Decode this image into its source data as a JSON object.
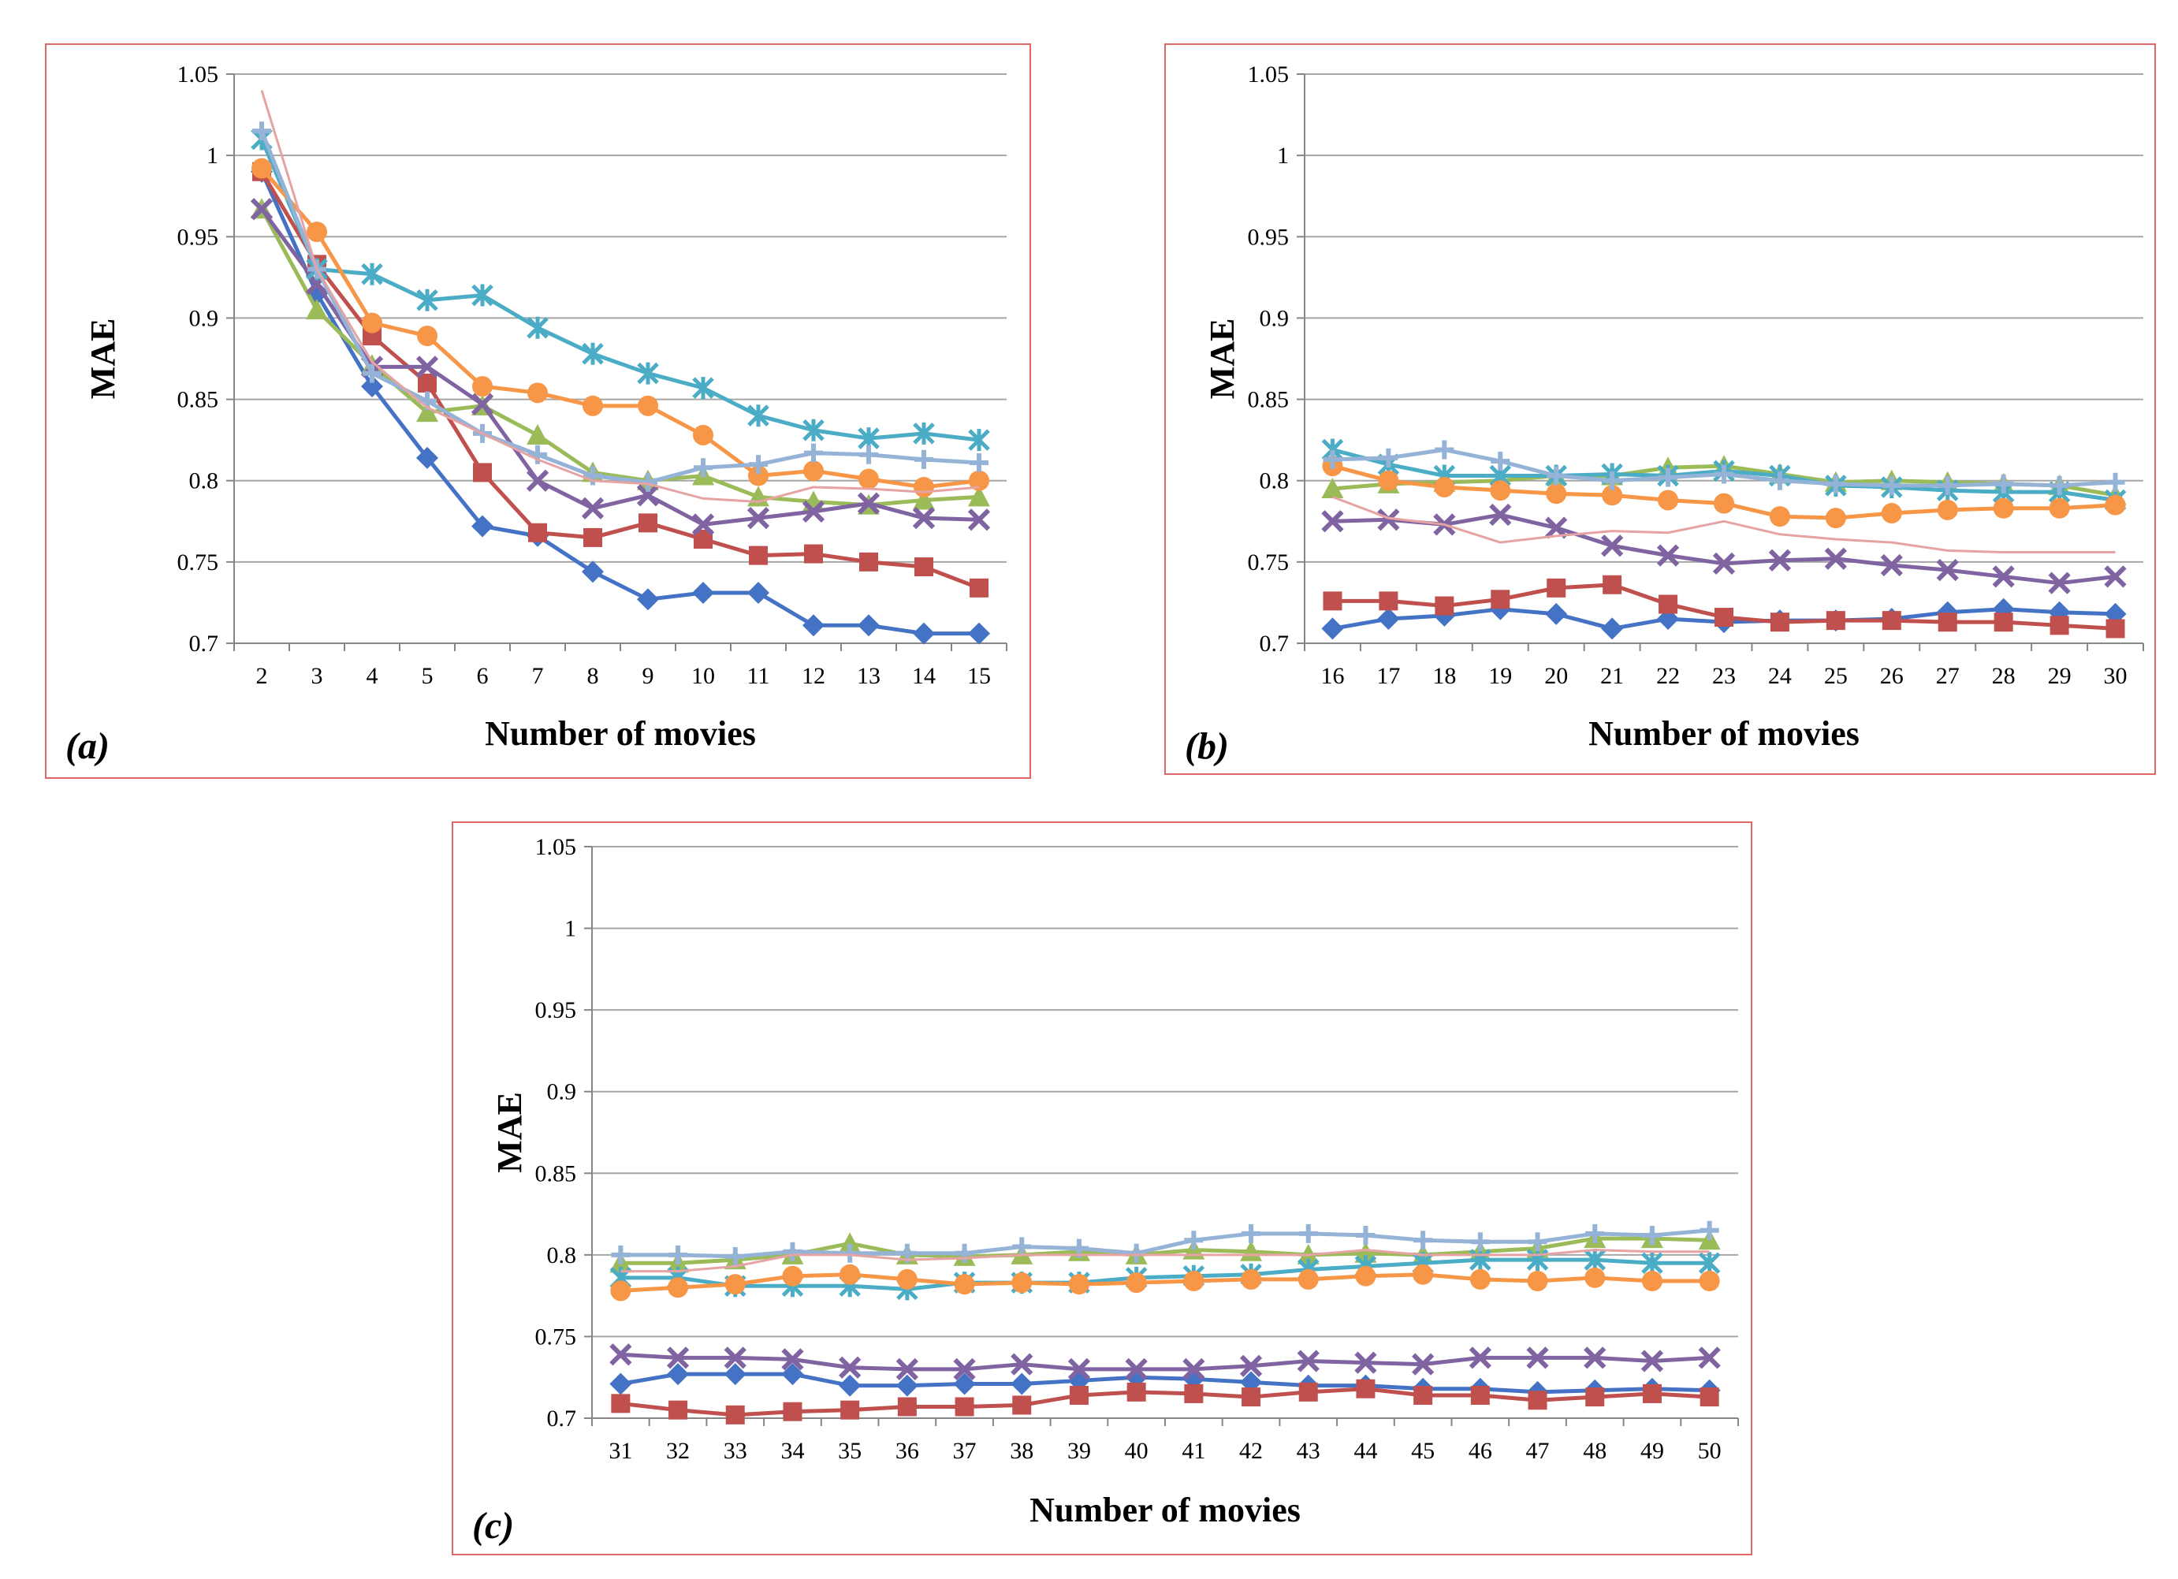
{
  "series_styles": [
    {
      "key": "s1",
      "color": "#4472c4",
      "marker": "diamond"
    },
    {
      "key": "s2",
      "color": "#c0504d",
      "marker": "square"
    },
    {
      "key": "s3",
      "color": "#9bbb59",
      "marker": "triangle"
    },
    {
      "key": "s4",
      "color": "#8064a2",
      "marker": "x"
    },
    {
      "key": "s5",
      "color": "#4bacc6",
      "marker": "star"
    },
    {
      "key": "s6",
      "color": "#f79646",
      "marker": "circle"
    },
    {
      "key": "s7",
      "color": "#95b3d7",
      "marker": "plus"
    },
    {
      "key": "s8",
      "color": "#e6a3a3",
      "marker": "none"
    }
  ],
  "chart_data": [
    {
      "type": "line",
      "panel_label": "(a)",
      "xlabel": "Number of movies",
      "ylabel": "MAE",
      "ylim": [
        0.7,
        1.05
      ],
      "yticks": [
        "0.7",
        "0.75",
        "0.8",
        "0.85",
        "0.9",
        "0.95",
        "1",
        "1.05"
      ],
      "categories": [
        "2",
        "3",
        "4",
        "5",
        "6",
        "7",
        "8",
        "9",
        "10",
        "11",
        "12",
        "13",
        "14",
        "15"
      ],
      "series": [
        {
          "key": "s1",
          "values": [
            0.99,
            0.915,
            0.858,
            0.814,
            0.772,
            0.766,
            0.744,
            0.727,
            0.731,
            0.731,
            0.711,
            0.711,
            0.706,
            0.706
          ]
        },
        {
          "key": "s2",
          "values": [
            0.99,
            0.933,
            0.889,
            0.86,
            0.805,
            0.768,
            0.765,
            0.774,
            0.764,
            0.754,
            0.755,
            0.75,
            0.747,
            0.734
          ]
        },
        {
          "key": "s3",
          "values": [
            0.967,
            0.905,
            0.871,
            0.842,
            0.846,
            0.828,
            0.805,
            0.8,
            0.803,
            0.79,
            0.787,
            0.785,
            0.788,
            0.79
          ]
        },
        {
          "key": "s4",
          "values": [
            0.967,
            0.921,
            0.87,
            0.87,
            0.847,
            0.8,
            0.783,
            0.791,
            0.773,
            0.777,
            0.781,
            0.786,
            0.777,
            0.776
          ]
        },
        {
          "key": "s5",
          "values": [
            1.01,
            0.93,
            0.927,
            0.911,
            0.914,
            0.894,
            0.878,
            0.866,
            0.857,
            0.84,
            0.831,
            0.826,
            0.829,
            0.825
          ]
        },
        {
          "key": "s6",
          "values": [
            0.992,
            0.953,
            0.897,
            0.889,
            0.858,
            0.854,
            0.846,
            0.846,
            0.828,
            0.803,
            0.806,
            0.801,
            0.796,
            0.8
          ]
        },
        {
          "key": "s7",
          "values": [
            1.015,
            0.93,
            0.866,
            0.849,
            0.829,
            0.816,
            0.803,
            0.799,
            0.808,
            0.81,
            0.817,
            0.816,
            0.813,
            0.811
          ]
        },
        {
          "key": "s8",
          "values": [
            1.04,
            0.93,
            0.873,
            0.845,
            0.829,
            0.813,
            0.8,
            0.798,
            0.789,
            0.787,
            0.796,
            0.795,
            0.793,
            0.796
          ]
        }
      ]
    },
    {
      "type": "line",
      "panel_label": "(b)",
      "xlabel": "Number of movies",
      "ylabel": "MAE",
      "ylim": [
        0.7,
        1.05
      ],
      "yticks": [
        "0.7",
        "0.75",
        "0.8",
        "0.85",
        "0.9",
        "0.95",
        "1",
        "1.05"
      ],
      "categories": [
        "16",
        "17",
        "18",
        "19",
        "20",
        "21",
        "22",
        "23",
        "24",
        "25",
        "26",
        "27",
        "28",
        "29",
        "30"
      ],
      "series": [
        {
          "key": "s1",
          "values": [
            0.709,
            0.715,
            0.717,
            0.721,
            0.718,
            0.709,
            0.715,
            0.713,
            0.714,
            0.714,
            0.715,
            0.719,
            0.721,
            0.719,
            0.718
          ]
        },
        {
          "key": "s2",
          "values": [
            0.726,
            0.726,
            0.723,
            0.727,
            0.734,
            0.736,
            0.724,
            0.716,
            0.713,
            0.714,
            0.714,
            0.713,
            0.713,
            0.711,
            0.709
          ]
        },
        {
          "key": "s3",
          "values": [
            0.795,
            0.798,
            0.799,
            0.8,
            0.803,
            0.803,
            0.808,
            0.809,
            0.804,
            0.799,
            0.8,
            0.799,
            0.798,
            0.797,
            0.791
          ]
        },
        {
          "key": "s4",
          "values": [
            0.775,
            0.776,
            0.773,
            0.779,
            0.771,
            0.76,
            0.754,
            0.749,
            0.751,
            0.752,
            0.748,
            0.745,
            0.741,
            0.737,
            0.741
          ]
        },
        {
          "key": "s5",
          "values": [
            0.819,
            0.81,
            0.803,
            0.803,
            0.803,
            0.804,
            0.803,
            0.806,
            0.803,
            0.797,
            0.796,
            0.794,
            0.793,
            0.793,
            0.788
          ]
        },
        {
          "key": "s6",
          "values": [
            0.809,
            0.8,
            0.796,
            0.794,
            0.792,
            0.791,
            0.788,
            0.786,
            0.778,
            0.777,
            0.78,
            0.782,
            0.783,
            0.783,
            0.785
          ]
        },
        {
          "key": "s7",
          "values": [
            0.813,
            0.814,
            0.819,
            0.812,
            0.803,
            0.8,
            0.802,
            0.804,
            0.8,
            0.798,
            0.797,
            0.797,
            0.798,
            0.797,
            0.799
          ]
        },
        {
          "key": "s8",
          "values": [
            0.79,
            0.777,
            0.773,
            0.762,
            0.766,
            0.769,
            0.768,
            0.775,
            0.767,
            0.764,
            0.762,
            0.757,
            0.756,
            0.756,
            0.756
          ]
        }
      ]
    },
    {
      "type": "line",
      "panel_label": "(c)",
      "xlabel": "Number of movies",
      "ylabel": "MAE",
      "ylim": [
        0.7,
        1.05
      ],
      "yticks": [
        "0.7",
        "0.75",
        "0.8",
        "0.85",
        "0.9",
        "0.95",
        "1",
        "1.05"
      ],
      "categories": [
        "31",
        "32",
        "33",
        "34",
        "35",
        "36",
        "37",
        "38",
        "39",
        "40",
        "41",
        "42",
        "43",
        "44",
        "45",
        "46",
        "47",
        "48",
        "49",
        "50"
      ],
      "series": [
        {
          "key": "s1",
          "values": [
            0.721,
            0.727,
            0.727,
            0.727,
            0.72,
            0.72,
            0.721,
            0.721,
            0.723,
            0.725,
            0.724,
            0.722,
            0.72,
            0.72,
            0.718,
            0.718,
            0.716,
            0.717,
            0.718,
            0.717
          ]
        },
        {
          "key": "s2",
          "values": [
            0.709,
            0.705,
            0.702,
            0.704,
            0.705,
            0.707,
            0.707,
            0.708,
            0.714,
            0.716,
            0.715,
            0.713,
            0.716,
            0.718,
            0.714,
            0.714,
            0.711,
            0.713,
            0.715,
            0.713
          ]
        },
        {
          "key": "s3",
          "values": [
            0.795,
            0.795,
            0.797,
            0.8,
            0.807,
            0.8,
            0.799,
            0.8,
            0.802,
            0.8,
            0.803,
            0.802,
            0.8,
            0.801,
            0.8,
            0.802,
            0.804,
            0.81,
            0.81,
            0.809
          ]
        },
        {
          "key": "s4",
          "values": [
            0.739,
            0.737,
            0.737,
            0.736,
            0.731,
            0.73,
            0.73,
            0.733,
            0.73,
            0.73,
            0.73,
            0.732,
            0.735,
            0.734,
            0.733,
            0.737,
            0.737,
            0.737,
            0.735,
            0.737
          ]
        },
        {
          "key": "s5",
          "values": [
            0.786,
            0.786,
            0.781,
            0.781,
            0.781,
            0.779,
            0.783,
            0.783,
            0.783,
            0.786,
            0.787,
            0.788,
            0.791,
            0.793,
            0.795,
            0.797,
            0.797,
            0.797,
            0.795,
            0.795
          ]
        },
        {
          "key": "s6",
          "values": [
            0.778,
            0.78,
            0.782,
            0.787,
            0.788,
            0.785,
            0.782,
            0.783,
            0.782,
            0.783,
            0.784,
            0.785,
            0.785,
            0.787,
            0.788,
            0.785,
            0.784,
            0.786,
            0.784,
            0.784
          ]
        },
        {
          "key": "s7",
          "values": [
            0.8,
            0.8,
            0.799,
            0.802,
            0.801,
            0.801,
            0.801,
            0.805,
            0.804,
            0.801,
            0.809,
            0.813,
            0.813,
            0.812,
            0.809,
            0.808,
            0.808,
            0.813,
            0.812,
            0.815
          ]
        },
        {
          "key": "s8",
          "values": [
            0.79,
            0.79,
            0.793,
            0.8,
            0.8,
            0.797,
            0.798,
            0.8,
            0.8,
            0.8,
            0.8,
            0.8,
            0.8,
            0.803,
            0.8,
            0.8,
            0.8,
            0.803,
            0.802,
            0.802
          ]
        }
      ]
    }
  ]
}
